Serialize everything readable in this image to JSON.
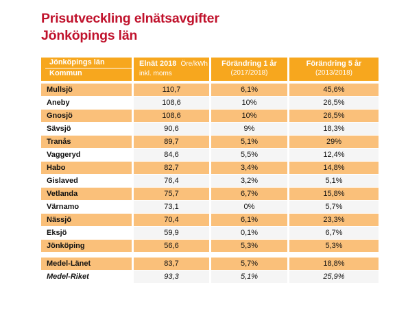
{
  "title": {
    "line1": "Prisutveckling elnätsavgifter",
    "line2": "Jönköpings län"
  },
  "header": {
    "col0_top": "Jönköpings län",
    "col0_bottom": "Kommun",
    "col1_main": "Elnät 2018",
    "col1_unit": "Öre/kWh",
    "col1_sub": "inkl. moms",
    "col2_main": "Förändring 1 år",
    "col2_sub": "(2017/2018)",
    "col3_main": "Förändring 5 år",
    "col3_sub": "(2013/2018)"
  },
  "rows": [
    {
      "kommun": "Mullsjö",
      "elnat": "110,7",
      "f1": "6,1%",
      "f5": "45,6%"
    },
    {
      "kommun": "Aneby",
      "elnat": "108,6",
      "f1": "10%",
      "f5": "26,5%"
    },
    {
      "kommun": "Gnosjö",
      "elnat": "108,6",
      "f1": "10%",
      "f5": "26,5%"
    },
    {
      "kommun": "Sävsjö",
      "elnat": "90,6",
      "f1": "9%",
      "f5": "18,3%"
    },
    {
      "kommun": "Tranås",
      "elnat": "89,7",
      "f1": "5,1%",
      "f5": "29%"
    },
    {
      "kommun": "Vaggeryd",
      "elnat": "84,6",
      "f1": "5,5%",
      "f5": "12,4%"
    },
    {
      "kommun": "Habo",
      "elnat": "82,7",
      "f1": "3,4%",
      "f5": "14,8%"
    },
    {
      "kommun": "Gislaved",
      "elnat": "76,4",
      "f1": "3,2%",
      "f5": "5,1%"
    },
    {
      "kommun": "Vetlanda",
      "elnat": "75,7",
      "f1": "6,7%",
      "f5": "15,8%"
    },
    {
      "kommun": "Värnamo",
      "elnat": "73,1",
      "f1": "0%",
      "f5": "5,7%"
    },
    {
      "kommun": "Nässjö",
      "elnat": "70,4",
      "f1": "6,1%",
      "f5": "23,3%"
    },
    {
      "kommun": "Eksjö",
      "elnat": "59,9",
      "f1": "0,1%",
      "f5": "6,7%"
    },
    {
      "kommun": "Jönköping",
      "elnat": "56,6",
      "f1": "5,3%",
      "f5": "5,3%"
    }
  ],
  "summary": [
    {
      "kommun": "Medel-Länet",
      "elnat": "83,7",
      "f1": "5,7%",
      "f5": "18,8%"
    },
    {
      "kommun": "Medel-Riket",
      "elnat": "93,3",
      "f1": "5,1%",
      "f5": "25,9%"
    }
  ],
  "colors": {
    "title": "#c0122c",
    "header_bg": "#f7a71e",
    "highlight_row": "#fac07a",
    "light_row": "#f5f5f5"
  }
}
